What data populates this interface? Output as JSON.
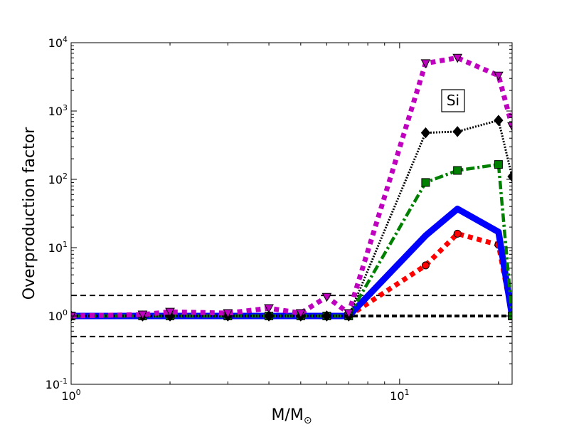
{
  "chart_data": {
    "type": "line",
    "xlabel": "M/M",
    "xlabel_symbol": "⊙",
    "ylabel": "Overproduction factor",
    "xscale": "log",
    "yscale": "log",
    "xlim": [
      1,
      22
    ],
    "ylim": [
      0.1,
      10000
    ],
    "x_ticks": [
      {
        "value": 1,
        "base": "10",
        "exp": "0"
      },
      {
        "value": 10,
        "base": "10",
        "exp": "1"
      }
    ],
    "y_ticks": [
      {
        "value": 0.1,
        "base": "10",
        "exp": "-1"
      },
      {
        "value": 1,
        "base": "10",
        "exp": "0"
      },
      {
        "value": 10,
        "base": "10",
        "exp": "1"
      },
      {
        "value": 100,
        "base": "10",
        "exp": "2"
      },
      {
        "value": 1000,
        "base": "10",
        "exp": "3"
      },
      {
        "value": 10000,
        "base": "10",
        "exp": "4"
      }
    ],
    "annotation": "Si",
    "reference_lines": [
      0.5,
      1,
      2
    ],
    "grid": false,
    "series": [
      {
        "color": "#ff0000",
        "style": "dotted",
        "marker": "circle",
        "x": [
          1,
          1.65,
          2,
          3,
          4,
          5,
          6,
          7,
          12,
          15,
          20,
          22
        ],
        "y": [
          1,
          1,
          1,
          1,
          1,
          1,
          1,
          1,
          5.5,
          16,
          11,
          1
        ]
      },
      {
        "color": "#0000ff",
        "style": "solid",
        "marker": "none",
        "x": [
          1,
          1.65,
          2,
          3,
          4,
          5,
          6,
          7,
          12,
          15,
          20,
          22
        ],
        "y": [
          1,
          1,
          1,
          1,
          1,
          1,
          1,
          1,
          15,
          37,
          17,
          1
        ]
      },
      {
        "color": "#008000",
        "style": "dashdot",
        "marker": "square",
        "x": [
          1,
          1.65,
          2,
          3,
          4,
          5,
          6,
          7,
          12,
          15,
          20,
          22
        ],
        "y": [
          1,
          1,
          1,
          1,
          1,
          1,
          1,
          1,
          90,
          135,
          165,
          1
        ]
      },
      {
        "color": "#000000",
        "style": "finedot",
        "marker": "diamond",
        "x": [
          1,
          1.65,
          2,
          3,
          4,
          5,
          6,
          7,
          12,
          15,
          20,
          22
        ],
        "y": [
          1,
          1,
          1,
          1,
          1,
          1,
          1,
          1,
          480,
          500,
          730,
          110
        ]
      },
      {
        "color": "#bf00bf",
        "style": "dotted",
        "marker": "triangle-down",
        "x": [
          1,
          1.65,
          2,
          3,
          4,
          5,
          6,
          7,
          12,
          15,
          20,
          22
        ],
        "y": [
          1,
          1.05,
          1.15,
          1.1,
          1.3,
          1.1,
          1.9,
          1.1,
          5000,
          6000,
          3300,
          600
        ]
      }
    ]
  }
}
